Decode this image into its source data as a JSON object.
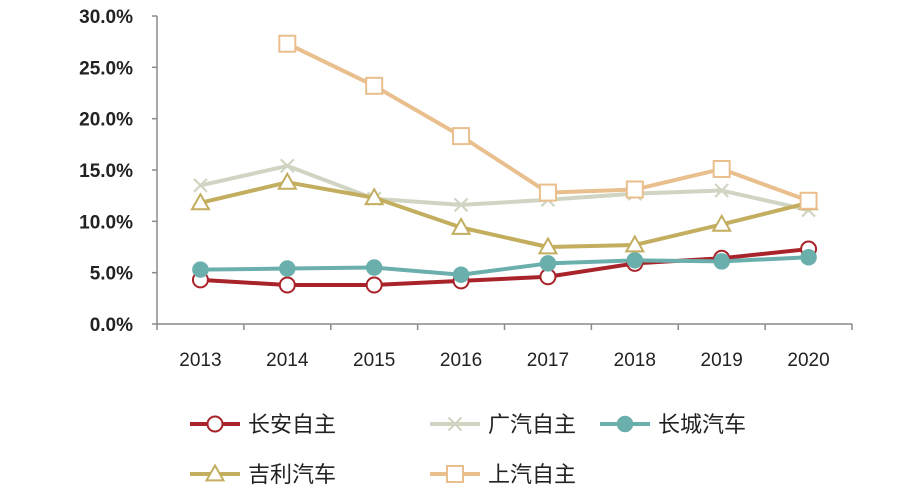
{
  "chart_data": {
    "type": "line",
    "categories": [
      "2013",
      "2014",
      "2015",
      "2016",
      "2017",
      "2018",
      "2019",
      "2020"
    ],
    "y_tick_labels": [
      "0.0%",
      "5.0%",
      "10.0%",
      "15.0%",
      "20.0%",
      "25.0%",
      "30.0%"
    ],
    "ylim": [
      0,
      30
    ],
    "grid": false,
    "legend_position": "bottom",
    "series": [
      {
        "name": "长安自主",
        "color": "#A8232A",
        "marker": "circle-open",
        "values": [
          4.3,
          3.8,
          3.8,
          4.2,
          4.6,
          5.9,
          6.4,
          7.3
        ]
      },
      {
        "name": "广汽自主",
        "color": "#D0D4C2",
        "marker": "x",
        "values": [
          13.5,
          15.4,
          12.2,
          11.6,
          12.1,
          12.7,
          13.0,
          11.1
        ]
      },
      {
        "name": "长城汽车",
        "color": "#6BAFAD",
        "marker": "circle-filled",
        "values": [
          5.3,
          5.4,
          5.5,
          4.8,
          5.9,
          6.2,
          6.1,
          6.5
        ]
      },
      {
        "name": "吉利汽车",
        "color": "#C3AD5E",
        "marker": "triangle-open",
        "values": [
          11.8,
          13.8,
          12.3,
          9.4,
          7.5,
          7.7,
          9.7,
          11.8
        ]
      },
      {
        "name": "上汽自主",
        "color": "#EABF8E",
        "marker": "square-open",
        "values": [
          null,
          27.3,
          23.2,
          18.3,
          12.8,
          13.1,
          15.1,
          12.0
        ]
      }
    ]
  }
}
